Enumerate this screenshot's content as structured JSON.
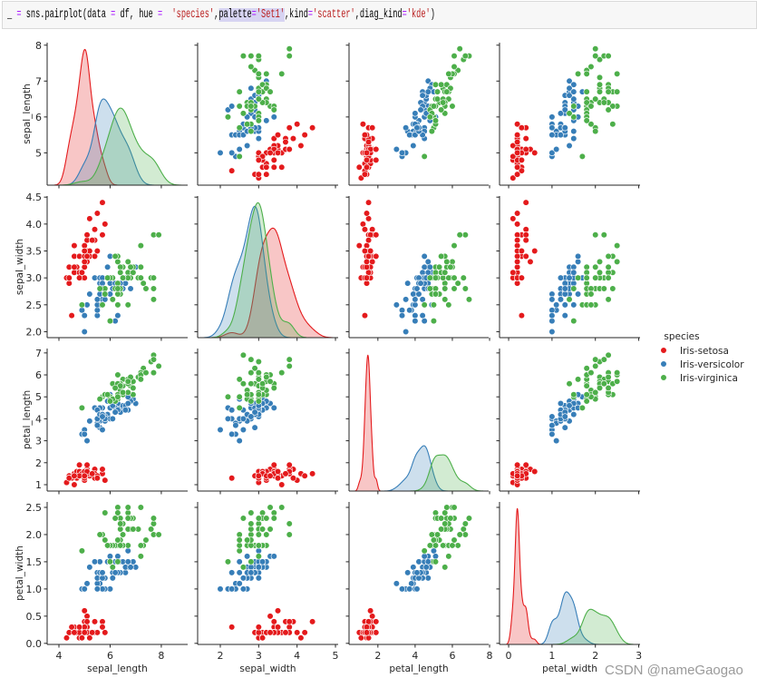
{
  "code_cell": {
    "tokens": [
      {
        "t": "_ ",
        "k": "p"
      },
      {
        "t": "=",
        "k": "op"
      },
      {
        "t": " sns.pairplot(data ",
        "k": "p"
      },
      {
        "t": "=",
        "k": "op"
      },
      {
        "t": " df, hue ",
        "k": "p"
      },
      {
        "t": "=",
        "k": "op"
      },
      {
        "t": "  ",
        "k": "p"
      },
      {
        "t": "'species'",
        "k": "str"
      },
      {
        "t": ",",
        "k": "p"
      },
      {
        "t": "palette",
        "k": "hl"
      },
      {
        "t": "=",
        "k": "hlop"
      },
      {
        "t": "'Set1'",
        "k": "hlstr"
      },
      {
        "t": ",kind",
        "k": "p"
      },
      {
        "t": "=",
        "k": "op"
      },
      {
        "t": "'scatter'",
        "k": "str"
      },
      {
        "t": ",diag_kind",
        "k": "p"
      },
      {
        "t": "=",
        "k": "op"
      },
      {
        "t": "'kde'",
        "k": "str"
      },
      {
        "t": ")",
        "k": "p"
      }
    ]
  },
  "watermark": "CSDN @nameGaogao",
  "chart_data": {
    "type": "scatter",
    "layout": "pairplot",
    "diag_kind": "kde",
    "grid": false,
    "variables": [
      "sepal_length",
      "sepal_width",
      "petal_length",
      "petal_width"
    ],
    "xlim": {
      "sepal_length": [
        3.54,
        9.03
      ],
      "sepal_width": [
        1.41,
        5.07
      ],
      "petal_length": [
        0.45,
        7.95
      ],
      "petal_width": [
        -0.21,
        3.03
      ]
    },
    "ylim": {
      "sepal_length": [
        4.1,
        8.07
      ],
      "sepal_width": [
        1.89,
        4.52
      ],
      "petal_length": [
        0.71,
        7.2
      ],
      "petal_width": [
        -0.02,
        2.6
      ]
    },
    "xticks": {
      "sepal_length": [
        "4",
        "6",
        "8"
      ],
      "sepal_width": [
        "2",
        "3",
        "4",
        "5"
      ],
      "petal_length": [
        "2",
        "4",
        "6",
        "8"
      ],
      "petal_width": [
        "0",
        "1",
        "2",
        "3"
      ]
    },
    "yticks": {
      "sepal_length": [
        "5",
        "6",
        "7",
        "8"
      ],
      "sepal_width": [
        "2.0",
        "2.5",
        "3.0",
        "3.5",
        "4.0",
        "4.5"
      ],
      "petal_length": [
        "1",
        "2",
        "3",
        "4",
        "5",
        "6",
        "7"
      ],
      "petal_width": [
        "0.0",
        "0.5",
        "1.0",
        "1.5",
        "2.0",
        "2.5"
      ]
    },
    "legend": {
      "title": "species",
      "placement": "right"
    },
    "species": [
      "Iris-setosa",
      "Iris-versicolor",
      "Iris-virginica"
    ],
    "colors": {
      "Iris-setosa": "#e41a1c",
      "Iris-versicolor": "#377eb8",
      "Iris-virginica": "#4daf4a"
    },
    "data": {
      "Iris-setosa": [
        [
          5.1,
          3.5,
          1.4,
          0.2
        ],
        [
          4.9,
          3.0,
          1.4,
          0.2
        ],
        [
          4.7,
          3.2,
          1.3,
          0.2
        ],
        [
          4.6,
          3.1,
          1.5,
          0.2
        ],
        [
          5.0,
          3.6,
          1.4,
          0.2
        ],
        [
          5.4,
          3.9,
          1.7,
          0.4
        ],
        [
          4.6,
          3.4,
          1.4,
          0.3
        ],
        [
          5.0,
          3.4,
          1.5,
          0.2
        ],
        [
          4.4,
          2.9,
          1.4,
          0.2
        ],
        [
          4.9,
          3.1,
          1.5,
          0.1
        ],
        [
          5.4,
          3.7,
          1.5,
          0.2
        ],
        [
          4.8,
          3.4,
          1.6,
          0.2
        ],
        [
          4.8,
          3.0,
          1.4,
          0.1
        ],
        [
          4.3,
          3.0,
          1.1,
          0.1
        ],
        [
          5.8,
          4.0,
          1.2,
          0.2
        ],
        [
          5.7,
          4.4,
          1.5,
          0.4
        ],
        [
          5.4,
          3.9,
          1.3,
          0.4
        ],
        [
          5.1,
          3.5,
          1.4,
          0.3
        ],
        [
          5.7,
          3.8,
          1.7,
          0.3
        ],
        [
          5.1,
          3.8,
          1.5,
          0.3
        ],
        [
          5.4,
          3.4,
          1.7,
          0.2
        ],
        [
          5.1,
          3.7,
          1.5,
          0.4
        ],
        [
          4.6,
          3.6,
          1.0,
          0.2
        ],
        [
          5.1,
          3.3,
          1.7,
          0.5
        ],
        [
          4.8,
          3.4,
          1.9,
          0.2
        ],
        [
          5.0,
          3.0,
          1.6,
          0.2
        ],
        [
          5.0,
          3.4,
          1.6,
          0.4
        ],
        [
          5.2,
          3.5,
          1.5,
          0.2
        ],
        [
          5.2,
          3.4,
          1.4,
          0.2
        ],
        [
          4.7,
          3.2,
          1.6,
          0.2
        ],
        [
          4.8,
          3.1,
          1.6,
          0.2
        ],
        [
          5.4,
          3.4,
          1.5,
          0.4
        ],
        [
          5.2,
          4.1,
          1.5,
          0.1
        ],
        [
          5.5,
          4.2,
          1.4,
          0.2
        ],
        [
          4.9,
          3.1,
          1.5,
          0.1
        ],
        [
          5.0,
          3.2,
          1.2,
          0.2
        ],
        [
          5.5,
          3.5,
          1.3,
          0.2
        ],
        [
          4.9,
          3.1,
          1.5,
          0.1
        ],
        [
          4.4,
          3.0,
          1.3,
          0.2
        ],
        [
          5.1,
          3.4,
          1.5,
          0.2
        ],
        [
          5.0,
          3.5,
          1.3,
          0.3
        ],
        [
          4.5,
          2.3,
          1.3,
          0.3
        ],
        [
          4.4,
          3.2,
          1.3,
          0.2
        ],
        [
          5.0,
          3.5,
          1.6,
          0.6
        ],
        [
          5.1,
          3.8,
          1.9,
          0.4
        ],
        [
          4.8,
          3.0,
          1.4,
          0.3
        ],
        [
          5.1,
          3.8,
          1.6,
          0.2
        ],
        [
          4.6,
          3.2,
          1.4,
          0.2
        ],
        [
          5.3,
          3.7,
          1.5,
          0.2
        ],
        [
          5.0,
          3.3,
          1.4,
          0.2
        ]
      ],
      "Iris-versicolor": [
        [
          7.0,
          3.2,
          4.7,
          1.4
        ],
        [
          6.4,
          3.2,
          4.5,
          1.5
        ],
        [
          6.9,
          3.1,
          4.9,
          1.5
        ],
        [
          5.5,
          2.3,
          4.0,
          1.3
        ],
        [
          6.5,
          2.8,
          4.6,
          1.5
        ],
        [
          5.7,
          2.8,
          4.5,
          1.3
        ],
        [
          6.3,
          3.3,
          4.7,
          1.6
        ],
        [
          4.9,
          2.4,
          3.3,
          1.0
        ],
        [
          6.6,
          2.9,
          4.6,
          1.3
        ],
        [
          5.2,
          2.7,
          3.9,
          1.4
        ],
        [
          5.0,
          2.0,
          3.5,
          1.0
        ],
        [
          5.9,
          3.0,
          4.2,
          1.5
        ],
        [
          6.0,
          2.2,
          4.0,
          1.0
        ],
        [
          6.1,
          2.9,
          4.7,
          1.4
        ],
        [
          5.6,
          2.9,
          3.6,
          1.3
        ],
        [
          6.7,
          3.1,
          4.4,
          1.4
        ],
        [
          5.6,
          3.0,
          4.5,
          1.5
        ],
        [
          5.8,
          2.7,
          4.1,
          1.0
        ],
        [
          6.2,
          2.2,
          4.5,
          1.5
        ],
        [
          5.6,
          2.5,
          3.9,
          1.1
        ],
        [
          5.9,
          3.2,
          4.8,
          1.8
        ],
        [
          6.1,
          2.8,
          4.0,
          1.3
        ],
        [
          6.3,
          2.5,
          4.9,
          1.5
        ],
        [
          6.1,
          2.8,
          4.7,
          1.2
        ],
        [
          6.4,
          2.9,
          4.3,
          1.3
        ],
        [
          6.6,
          3.0,
          4.4,
          1.4
        ],
        [
          6.8,
          2.8,
          4.8,
          1.4
        ],
        [
          6.7,
          3.0,
          5.0,
          1.7
        ],
        [
          6.0,
          2.9,
          4.5,
          1.5
        ],
        [
          5.7,
          2.6,
          3.5,
          1.0
        ],
        [
          5.5,
          2.4,
          3.8,
          1.1
        ],
        [
          5.5,
          2.4,
          3.7,
          1.0
        ],
        [
          5.8,
          2.7,
          3.9,
          1.2
        ],
        [
          6.0,
          2.7,
          5.1,
          1.6
        ],
        [
          5.4,
          3.0,
          4.5,
          1.5
        ],
        [
          6.0,
          3.4,
          4.5,
          1.6
        ],
        [
          6.7,
          3.1,
          4.7,
          1.5
        ],
        [
          6.3,
          2.3,
          4.4,
          1.3
        ],
        [
          5.6,
          3.0,
          4.1,
          1.3
        ],
        [
          5.5,
          2.5,
          4.0,
          1.3
        ],
        [
          5.5,
          2.6,
          4.4,
          1.2
        ],
        [
          6.1,
          3.0,
          4.6,
          1.4
        ],
        [
          5.8,
          2.6,
          4.0,
          1.2
        ],
        [
          5.0,
          2.3,
          3.3,
          1.0
        ],
        [
          5.6,
          2.7,
          4.2,
          1.3
        ],
        [
          5.7,
          3.0,
          4.2,
          1.2
        ],
        [
          5.7,
          2.9,
          4.2,
          1.3
        ],
        [
          6.2,
          2.9,
          4.3,
          1.3
        ],
        [
          5.1,
          2.5,
          3.0,
          1.1
        ],
        [
          5.7,
          2.8,
          4.1,
          1.3
        ]
      ],
      "Iris-virginica": [
        [
          6.3,
          3.3,
          6.0,
          2.5
        ],
        [
          5.8,
          2.7,
          5.1,
          1.9
        ],
        [
          7.1,
          3.0,
          5.9,
          2.1
        ],
        [
          6.3,
          2.9,
          5.6,
          1.8
        ],
        [
          6.5,
          3.0,
          5.8,
          2.2
        ],
        [
          7.6,
          3.0,
          6.6,
          2.1
        ],
        [
          4.9,
          2.5,
          4.5,
          1.7
        ],
        [
          7.3,
          2.9,
          6.3,
          1.8
        ],
        [
          6.7,
          2.5,
          5.8,
          1.8
        ],
        [
          7.2,
          3.6,
          6.1,
          2.5
        ],
        [
          6.5,
          3.2,
          5.1,
          2.0
        ],
        [
          6.4,
          2.7,
          5.3,
          1.9
        ],
        [
          6.8,
          3.0,
          5.5,
          2.1
        ],
        [
          5.7,
          2.5,
          5.0,
          2.0
        ],
        [
          5.8,
          2.8,
          5.1,
          2.4
        ],
        [
          6.4,
          3.2,
          5.3,
          2.3
        ],
        [
          6.5,
          3.0,
          5.5,
          1.8
        ],
        [
          7.7,
          3.8,
          6.7,
          2.2
        ],
        [
          7.7,
          2.6,
          6.9,
          2.3
        ],
        [
          6.0,
          2.2,
          5.0,
          1.5
        ],
        [
          6.9,
          3.2,
          5.7,
          2.3
        ],
        [
          5.6,
          2.8,
          4.9,
          2.0
        ],
        [
          7.7,
          2.8,
          6.7,
          2.0
        ],
        [
          6.3,
          2.7,
          4.9,
          1.8
        ],
        [
          6.7,
          3.3,
          5.7,
          2.1
        ],
        [
          7.2,
          3.2,
          6.0,
          1.8
        ],
        [
          6.2,
          2.8,
          4.8,
          1.8
        ],
        [
          6.1,
          3.0,
          4.9,
          1.8
        ],
        [
          6.4,
          2.8,
          5.6,
          2.1
        ],
        [
          7.2,
          3.0,
          5.8,
          1.6
        ],
        [
          7.4,
          2.8,
          6.1,
          1.9
        ],
        [
          7.9,
          3.8,
          6.4,
          2.0
        ],
        [
          6.4,
          2.8,
          5.6,
          2.2
        ],
        [
          6.3,
          2.8,
          5.1,
          1.5
        ],
        [
          6.1,
          2.6,
          5.6,
          1.4
        ],
        [
          7.7,
          3.0,
          6.1,
          2.3
        ],
        [
          6.3,
          3.4,
          5.6,
          2.4
        ],
        [
          6.4,
          3.1,
          5.5,
          1.8
        ],
        [
          6.0,
          3.0,
          4.8,
          1.8
        ],
        [
          6.9,
          3.1,
          5.4,
          2.1
        ],
        [
          6.7,
          3.1,
          5.6,
          2.4
        ],
        [
          6.9,
          3.1,
          5.1,
          2.3
        ],
        [
          5.8,
          2.7,
          5.1,
          1.9
        ],
        [
          6.8,
          3.2,
          5.9,
          2.3
        ],
        [
          6.7,
          3.3,
          5.7,
          2.5
        ],
        [
          6.7,
          3.0,
          5.2,
          2.3
        ],
        [
          6.3,
          2.5,
          5.0,
          1.9
        ],
        [
          6.5,
          3.0,
          5.2,
          2.0
        ],
        [
          6.2,
          3.4,
          5.4,
          2.3
        ],
        [
          5.9,
          3.0,
          5.1,
          1.8
        ]
      ]
    }
  }
}
